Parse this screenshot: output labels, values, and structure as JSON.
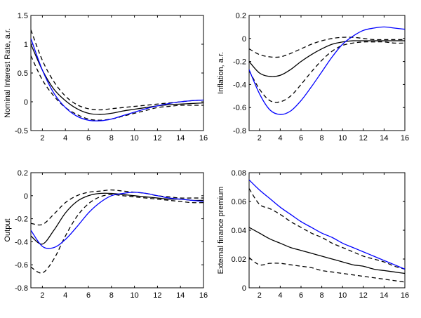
{
  "chart_data": [
    {
      "type": "line",
      "ylabel": "Nominal Interest Rate, a.r.",
      "xlim": [
        1,
        16
      ],
      "ylim": [
        -0.5,
        1.5
      ],
      "xticks": [
        2,
        4,
        6,
        8,
        10,
        12,
        14,
        16
      ],
      "yticks": [
        -0.5,
        0,
        0.5,
        1,
        1.5
      ],
      "ytick_labels": [
        "-0.5",
        "0",
        "0.5",
        "1",
        "1.5"
      ],
      "x": [
        1,
        2,
        3,
        4,
        5,
        6,
        7,
        8,
        9,
        10,
        11,
        12,
        13,
        14,
        15,
        16
      ],
      "series": [
        {
          "role": "median",
          "color": "#000000",
          "style": "solid",
          "values": [
            1.0,
            0.55,
            0.22,
            0.02,
            -0.12,
            -0.2,
            -0.22,
            -0.2,
            -0.16,
            -0.13,
            -0.1,
            -0.07,
            -0.05,
            -0.04,
            -0.03,
            -0.02
          ]
        },
        {
          "role": "upper-band",
          "color": "#000000",
          "style": "dashed",
          "values": [
            1.25,
            0.72,
            0.35,
            0.1,
            -0.05,
            -0.12,
            -0.14,
            -0.12,
            -0.1,
            -0.08,
            -0.06,
            -0.04,
            -0.02,
            0.0,
            0.02,
            0.03
          ]
        },
        {
          "role": "lower-band",
          "color": "#000000",
          "style": "dashed",
          "values": [
            0.8,
            0.38,
            0.1,
            -0.1,
            -0.22,
            -0.3,
            -0.32,
            -0.3,
            -0.25,
            -0.2,
            -0.15,
            -0.1,
            -0.08,
            -0.06,
            -0.06,
            -0.06
          ]
        },
        {
          "role": "model",
          "color": "#0000ff",
          "style": "solid",
          "values": [
            1.1,
            0.55,
            0.15,
            -0.1,
            -0.25,
            -0.32,
            -0.33,
            -0.3,
            -0.24,
            -0.18,
            -0.12,
            -0.07,
            -0.03,
            0.0,
            0.02,
            0.03
          ]
        }
      ]
    },
    {
      "type": "line",
      "ylabel": "Inflation, a.r.",
      "xlim": [
        1,
        16
      ],
      "ylim": [
        -0.8,
        0.2
      ],
      "xticks": [
        2,
        4,
        6,
        8,
        10,
        12,
        14,
        16
      ],
      "yticks": [
        -0.8,
        -0.6,
        -0.4,
        -0.2,
        0,
        0.2
      ],
      "ytick_labels": [
        "-0.8",
        "-0.6",
        "-0.4",
        "-0.2",
        "0",
        "0.2"
      ],
      "x": [
        1,
        2,
        3,
        4,
        5,
        6,
        7,
        8,
        9,
        10,
        11,
        12,
        13,
        14,
        15,
        16
      ],
      "series": [
        {
          "role": "median",
          "color": "#000000",
          "style": "solid",
          "values": [
            -0.2,
            -0.3,
            -0.33,
            -0.32,
            -0.27,
            -0.2,
            -0.14,
            -0.09,
            -0.05,
            -0.03,
            -0.02,
            -0.02,
            -0.02,
            -0.02,
            -0.02,
            -0.02
          ]
        },
        {
          "role": "upper-band",
          "color": "#000000",
          "style": "dashed",
          "values": [
            -0.09,
            -0.14,
            -0.16,
            -0.16,
            -0.13,
            -0.09,
            -0.05,
            -0.02,
            0.0,
            0.01,
            0.01,
            0.0,
            -0.01,
            -0.01,
            -0.01,
            -0.01
          ]
        },
        {
          "role": "lower-band",
          "color": "#000000",
          "style": "dashed",
          "values": [
            -0.28,
            -0.44,
            -0.54,
            -0.55,
            -0.5,
            -0.4,
            -0.29,
            -0.19,
            -0.11,
            -0.06,
            -0.04,
            -0.03,
            -0.03,
            -0.03,
            -0.04,
            -0.04
          ]
        },
        {
          "role": "model",
          "color": "#0000ff",
          "style": "solid",
          "values": [
            -0.27,
            -0.48,
            -0.62,
            -0.66,
            -0.63,
            -0.54,
            -0.42,
            -0.29,
            -0.16,
            -0.05,
            0.02,
            0.07,
            0.09,
            0.1,
            0.09,
            0.08
          ]
        }
      ]
    },
    {
      "type": "line",
      "ylabel": "Output",
      "xlim": [
        1,
        16
      ],
      "ylim": [
        -0.8,
        0.2
      ],
      "xticks": [
        2,
        4,
        6,
        8,
        10,
        12,
        14,
        16
      ],
      "yticks": [
        -0.8,
        -0.6,
        -0.4,
        -0.2,
        0,
        0.2
      ],
      "ytick_labels": [
        "-0.8",
        "-0.6",
        "-0.4",
        "-0.2",
        "0",
        "0.2"
      ],
      "x": [
        1,
        2,
        3,
        4,
        5,
        6,
        7,
        8,
        9,
        10,
        11,
        12,
        13,
        14,
        15,
        16
      ],
      "series": [
        {
          "role": "median",
          "color": "#000000",
          "style": "solid",
          "values": [
            -0.35,
            -0.42,
            -0.3,
            -0.15,
            -0.05,
            0.0,
            0.02,
            0.02,
            0.01,
            0.0,
            -0.01,
            -0.02,
            -0.03,
            -0.03,
            -0.04,
            -0.04
          ]
        },
        {
          "role": "upper-band",
          "color": "#000000",
          "style": "dashed",
          "values": [
            -0.24,
            -0.25,
            -0.16,
            -0.06,
            0.0,
            0.03,
            0.04,
            0.05,
            0.04,
            0.03,
            0.02,
            0.0,
            -0.01,
            -0.02,
            -0.02,
            -0.02
          ]
        },
        {
          "role": "lower-band",
          "color": "#000000",
          "style": "dashed",
          "values": [
            -0.62,
            -0.67,
            -0.55,
            -0.35,
            -0.18,
            -0.07,
            -0.01,
            0.01,
            0.0,
            -0.01,
            -0.02,
            -0.03,
            -0.04,
            -0.05,
            -0.06,
            -0.06
          ]
        },
        {
          "role": "model",
          "color": "#0000ff",
          "style": "solid",
          "values": [
            -0.3,
            -0.44,
            -0.45,
            -0.38,
            -0.27,
            -0.15,
            -0.06,
            0.0,
            0.02,
            0.03,
            0.02,
            0.0,
            -0.02,
            -0.03,
            -0.04,
            -0.05
          ]
        }
      ]
    },
    {
      "type": "line",
      "ylabel": "External finance premium",
      "xlim": [
        1,
        16
      ],
      "ylim": [
        0,
        0.08
      ],
      "xticks": [
        2,
        4,
        6,
        8,
        10,
        12,
        14,
        16
      ],
      "yticks": [
        0,
        0.02,
        0.04,
        0.06,
        0.08
      ],
      "ytick_labels": [
        "0",
        "0.02",
        "0.04",
        "0.06",
        "0.08"
      ],
      "x": [
        1,
        2,
        3,
        4,
        5,
        6,
        7,
        8,
        9,
        10,
        11,
        12,
        13,
        14,
        15,
        16
      ],
      "series": [
        {
          "role": "median",
          "color": "#000000",
          "style": "solid",
          "values": [
            0.042,
            0.038,
            0.034,
            0.031,
            0.028,
            0.026,
            0.024,
            0.022,
            0.02,
            0.018,
            0.016,
            0.015,
            0.013,
            0.012,
            0.011,
            0.01
          ]
        },
        {
          "role": "upper-band",
          "color": "#000000",
          "style": "dashed",
          "values": [
            0.069,
            0.058,
            0.055,
            0.051,
            0.046,
            0.042,
            0.038,
            0.035,
            0.031,
            0.028,
            0.025,
            0.022,
            0.02,
            0.018,
            0.015,
            0.013
          ]
        },
        {
          "role": "lower-band",
          "color": "#000000",
          "style": "dashed",
          "values": [
            0.021,
            0.016,
            0.017,
            0.017,
            0.016,
            0.015,
            0.014,
            0.012,
            0.011,
            0.01,
            0.009,
            0.008,
            0.007,
            0.006,
            0.005,
            0.004
          ]
        },
        {
          "role": "model",
          "color": "#0000ff",
          "style": "solid",
          "values": [
            0.075,
            0.068,
            0.062,
            0.056,
            0.051,
            0.046,
            0.042,
            0.038,
            0.035,
            0.031,
            0.028,
            0.025,
            0.022,
            0.019,
            0.016,
            0.013
          ]
        }
      ]
    }
  ]
}
